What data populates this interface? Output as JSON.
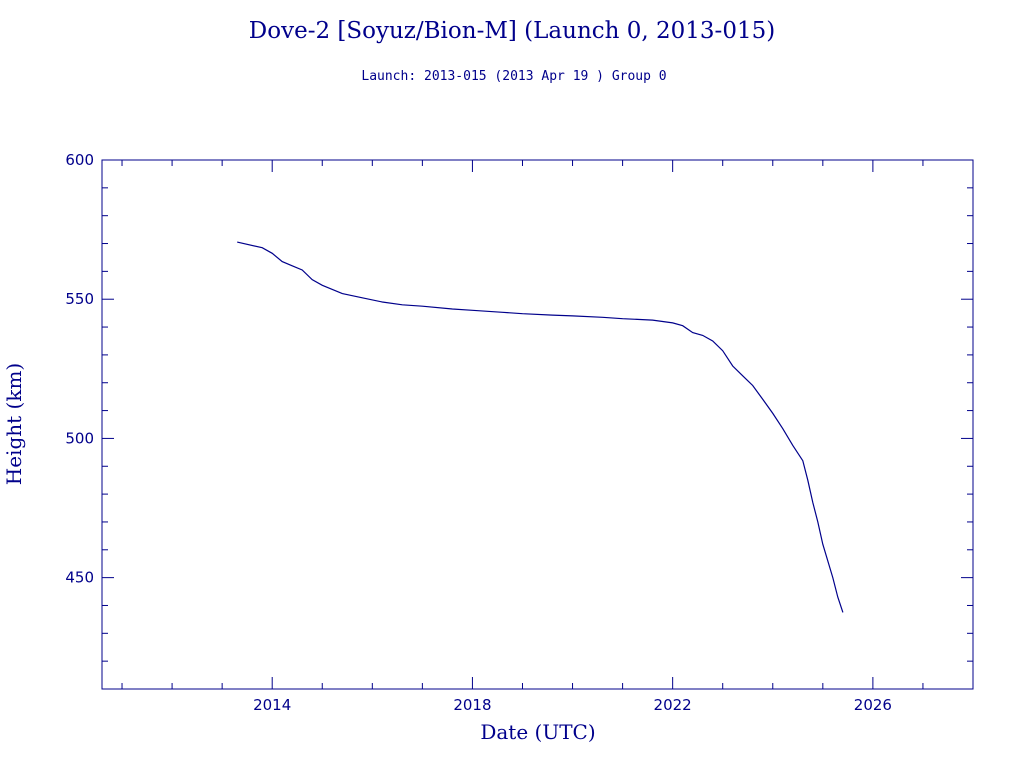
{
  "chart_data": {
    "type": "line",
    "title": "Dove-2 [Soyuz/Bion-M] (Launch 0, 2013-015)",
    "subtitle": "Launch: 2013-015  (2013 Apr 19 )  Group 0",
    "xlabel": "Date (UTC)",
    "ylabel": "Height (km)",
    "xlim": [
      2010.6,
      2028.0
    ],
    "ylim": [
      410,
      600
    ],
    "xticks": [
      2014,
      2018,
      2022,
      2026
    ],
    "yticks": [
      450,
      500,
      550,
      600
    ],
    "color": "#00008b",
    "series": [
      {
        "x": [
          2013.3,
          2013.8,
          2014.0,
          2014.2,
          2014.4,
          2014.6,
          2014.8,
          2015.0,
          2015.4,
          2015.8,
          2016.2,
          2016.6,
          2017.0,
          2017.6,
          2018.0,
          2018.6,
          2019.0,
          2019.6,
          2020.0,
          2020.6,
          2021.0,
          2021.6,
          2022.0,
          2022.2,
          2022.4,
          2022.6,
          2022.8,
          2023.0,
          2023.2,
          2023.4,
          2023.6,
          2023.8,
          2024.0,
          2024.2,
          2024.4,
          2024.6,
          2024.7,
          2024.8,
          2024.9,
          2025.0,
          2025.2,
          2025.3,
          2025.4
        ],
        "y": [
          570.5,
          568.5,
          566.5,
          563.5,
          562,
          560.5,
          557,
          555,
          552,
          550.5,
          549,
          548,
          547.5,
          546.5,
          546,
          545.3,
          544.8,
          544.3,
          544,
          543.5,
          543,
          542.5,
          541.5,
          540.5,
          538,
          537,
          535,
          531.5,
          526,
          522.5,
          519,
          514,
          509,
          503.5,
          497.5,
          492,
          485,
          477,
          470,
          462,
          450,
          443,
          437.5
        ]
      }
    ]
  }
}
